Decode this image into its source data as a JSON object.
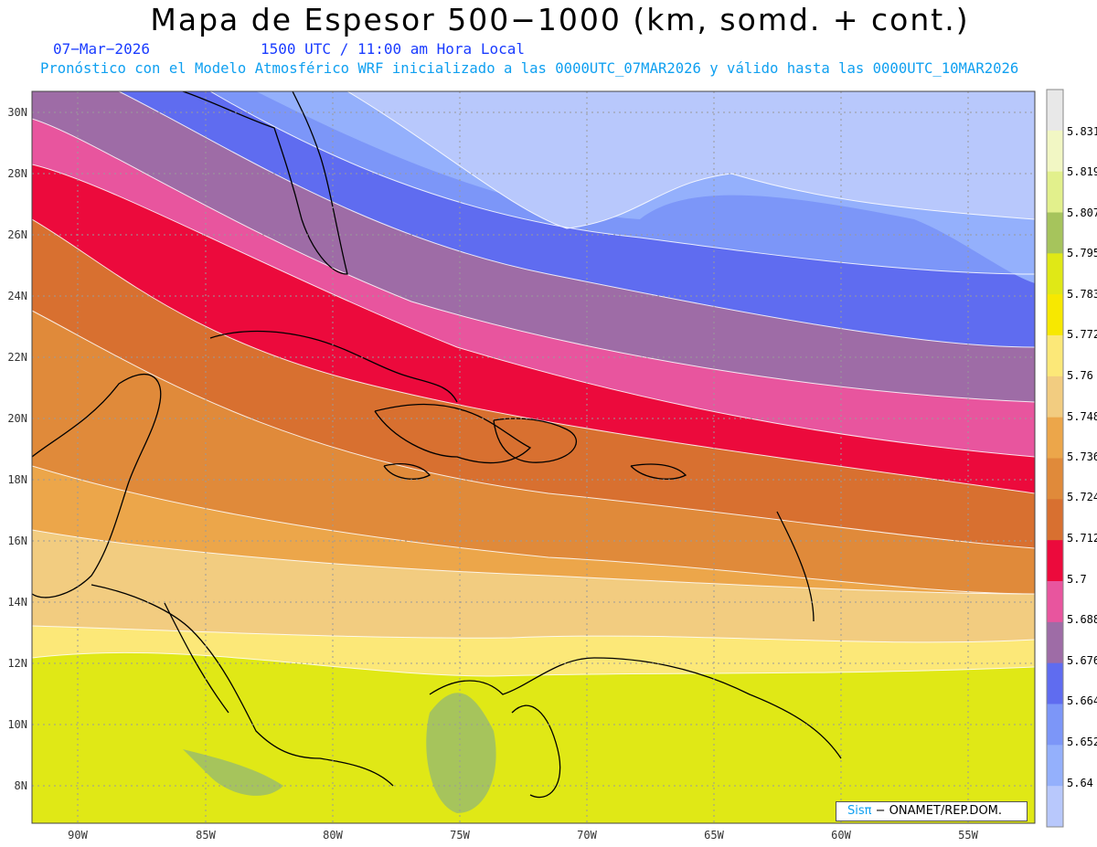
{
  "header": {
    "title": "Mapa de Espesor 500−1000 (km, somd. + cont.)",
    "date": "07−Mar−2026",
    "time": "1500 UTC / 11:00 am Hora Local",
    "forecast": "Pronóstico con el Modelo Atmosférico WRF inicializado a las 0000UTC_07MAR2026 y válido hasta las  0000UTC_10MAR2026"
  },
  "axes": {
    "lat_labels": [
      "30N",
      "28N",
      "26N",
      "24N",
      "22N",
      "20N",
      "18N",
      "16N",
      "14N",
      "12N",
      "10N",
      "8N"
    ],
    "lon_labels": [
      "90W",
      "85W",
      "80W",
      "75W",
      "70W",
      "65W",
      "60W",
      "55W"
    ]
  },
  "colorbar": {
    "labels": [
      "5.831",
      "5.819",
      "5.807",
      "5.795",
      "5.783",
      "5.772",
      "5.76",
      "5.748",
      "5.736",
      "5.724",
      "5.712",
      "5.7",
      "5.688",
      "5.676",
      "5.664",
      "5.652",
      "5.64"
    ],
    "colors": [
      "#e8e8e8",
      "#f2f7c4",
      "#e2f08c",
      "#a6c45c",
      "#e0e816",
      "#f7e800",
      "#fce878",
      "#f2cc80",
      "#eca64a",
      "#e08a3a",
      "#d87030",
      "#ec0a3c",
      "#e8559e",
      "#9e6ca6",
      "#5f6cf0",
      "#7c96f8",
      "#94b0fc",
      "#b8c8fc"
    ]
  },
  "credit": {
    "brand": "Sisπ",
    "org": "− ONAMET/REP.DOM."
  }
}
